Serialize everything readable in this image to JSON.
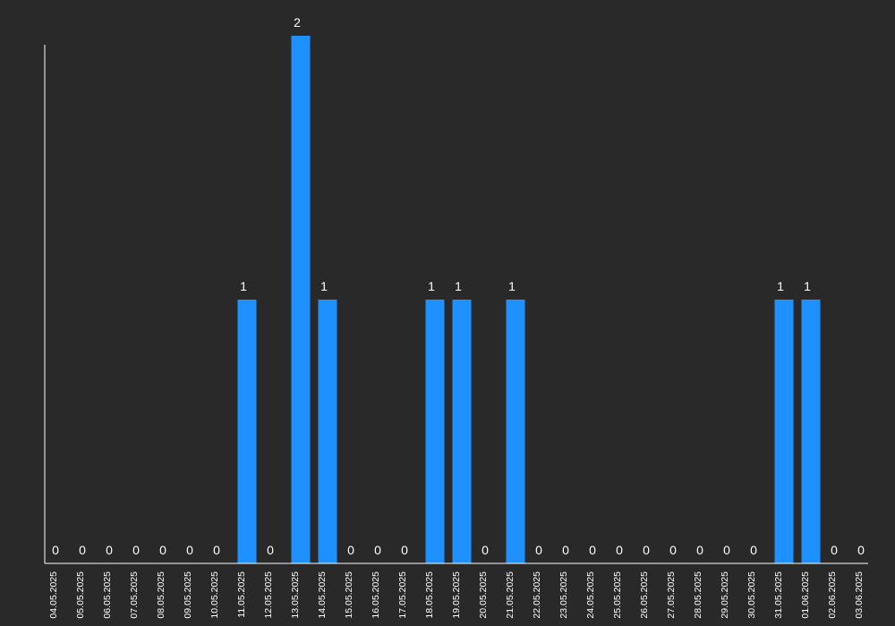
{
  "chart_data": {
    "type": "bar",
    "categories": [
      "04.05.2025",
      "05.05.2025",
      "06.05.2025",
      "07.05.2025",
      "08.05.2025",
      "09.05.2025",
      "10.05.2025",
      "11.05.2025",
      "12.05.2025",
      "13.05.2025",
      "14.05.2025",
      "15.05.2025",
      "16.05.2025",
      "17.05.2025",
      "18.05.2025",
      "19.05.2025",
      "20.05.2025",
      "21.05.2025",
      "22.05.2025",
      "23.05.2025",
      "24.05.2025",
      "25.05.2025",
      "26.05.2025",
      "27.05.2025",
      "28.05.2025",
      "29.05.2025",
      "30.05.2025",
      "31.05.2025",
      "01.06.2025",
      "02.06.2025",
      "03.06.2025"
    ],
    "values": [
      0,
      0,
      0,
      0,
      0,
      0,
      0,
      1,
      0,
      2,
      1,
      0,
      0,
      0,
      1,
      1,
      0,
      1,
      0,
      0,
      0,
      0,
      0,
      0,
      0,
      0,
      0,
      1,
      1,
      0,
      0
    ],
    "title": "",
    "xlabel": "",
    "ylabel": "",
    "ylim": [
      0,
      2
    ],
    "grid": false,
    "legend": "none",
    "data_labels": true,
    "colors": {
      "background": "#292929",
      "bar": "#1e90ff",
      "axis": "#ffffff",
      "text": "#ffffff"
    }
  }
}
